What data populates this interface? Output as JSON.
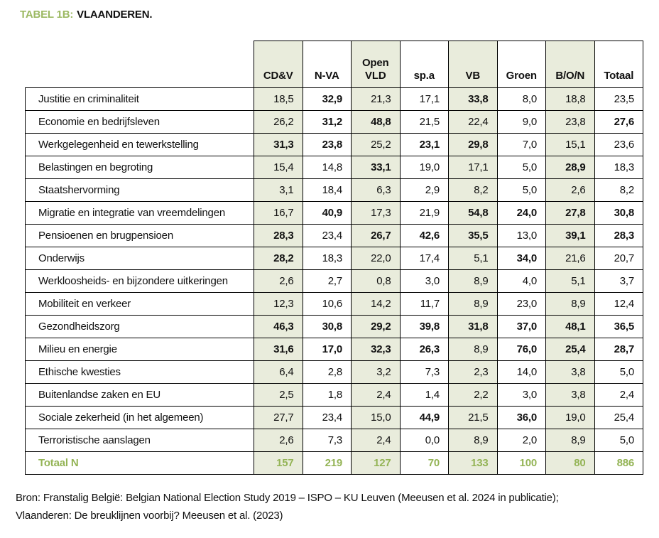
{
  "page": {
    "title_prefix": "TABEL 1B:",
    "title_main": "VLAANDEREN.",
    "source_line1": "Bron: Franstalig België: Belgian National Election Study 2019 – ISPO – KU Leuven (Meeusen et al. 2024 in publicatie);",
    "source_line2": "Vlaanderen: De breuklijnen voorbij? Meeusen et al. (2023)"
  },
  "colors": {
    "accent_green": "#9cb963",
    "total_green": "#94b456",
    "cell_shade": "#e9ecdc",
    "border": "#000000"
  },
  "table": {
    "columns": [
      {
        "label": "CD&V",
        "shaded": true
      },
      {
        "label": "N-VA",
        "shaded": false
      },
      {
        "label": "Open VLD",
        "shaded": true
      },
      {
        "label": "sp.a",
        "shaded": false
      },
      {
        "label": "VB",
        "shaded": true
      },
      {
        "label": "Groen",
        "shaded": false
      },
      {
        "label": "B/O/N",
        "shaded": true
      },
      {
        "label": "Totaal",
        "shaded": false
      }
    ],
    "rows": [
      {
        "label": "Justitie en criminaliteit",
        "values": [
          "18,5",
          "32,9",
          "21,3",
          "17,1",
          "33,8",
          "8,0",
          "18,8",
          "23,5"
        ],
        "bold": [
          0,
          1,
          0,
          0,
          1,
          0,
          0,
          0
        ]
      },
      {
        "label": "Economie en bedrijfsleven",
        "values": [
          "26,2",
          "31,2",
          "48,8",
          "21,5",
          "22,4",
          "9,0",
          "23,8",
          "27,6"
        ],
        "bold": [
          0,
          1,
          1,
          0,
          0,
          0,
          0,
          1
        ]
      },
      {
        "label": "Werkgelegenheid en tewerkstelling",
        "values": [
          "31,3",
          "23,8",
          "25,2",
          "23,1",
          "29,8",
          "7,0",
          "15,1",
          "23,6"
        ],
        "bold": [
          1,
          1,
          0,
          1,
          1,
          0,
          0,
          0
        ]
      },
      {
        "label": "Belastingen en begroting",
        "values": [
          "15,4",
          "14,8",
          "33,1",
          "19,0",
          "17,1",
          "5,0",
          "28,9",
          "18,3"
        ],
        "bold": [
          0,
          0,
          1,
          0,
          0,
          0,
          1,
          0
        ]
      },
      {
        "label": "Staatshervorming",
        "values": [
          "3,1",
          "18,4",
          "6,3",
          "2,9",
          "8,2",
          "5,0",
          "2,6",
          "8,2"
        ],
        "bold": [
          0,
          0,
          0,
          0,
          0,
          0,
          0,
          0
        ]
      },
      {
        "label": "Migratie en integratie van vreemdelingen",
        "values": [
          "16,7",
          "40,9",
          "17,3",
          "21,9",
          "54,8",
          "24,0",
          "27,8",
          "30,8"
        ],
        "bold": [
          0,
          1,
          0,
          0,
          1,
          1,
          1,
          1
        ]
      },
      {
        "label": "Pensioenen en brugpensioen",
        "values": [
          "28,3",
          "23,4",
          "26,7",
          "42,6",
          "35,5",
          "13,0",
          "39,1",
          "28,3"
        ],
        "bold": [
          1,
          0,
          1,
          1,
          1,
          0,
          1,
          1
        ]
      },
      {
        "label": "Onderwijs",
        "values": [
          "28,2",
          "18,3",
          "22,0",
          "17,4",
          "5,1",
          "34,0",
          "21,6",
          "20,7"
        ],
        "bold": [
          1,
          0,
          0,
          0,
          0,
          1,
          0,
          0
        ]
      },
      {
        "label": "Werkloosheids- en bijzondere uitkeringen",
        "values": [
          "2,6",
          "2,7",
          "0,8",
          "3,0",
          "8,9",
          "4,0",
          "5,1",
          "3,7"
        ],
        "bold": [
          0,
          0,
          0,
          0,
          0,
          0,
          0,
          0
        ]
      },
      {
        "label": "Mobiliteit en verkeer",
        "values": [
          "12,3",
          "10,6",
          "14,2",
          "11,7",
          "8,9",
          "23,0",
          "8,9",
          "12,4"
        ],
        "bold": [
          0,
          0,
          0,
          0,
          0,
          0,
          0,
          0
        ]
      },
      {
        "label": "Gezondheidszorg",
        "values": [
          "46,3",
          "30,8",
          "29,2",
          "39,8",
          "31,8",
          "37,0",
          "48,1",
          "36,5"
        ],
        "bold": [
          1,
          1,
          1,
          1,
          1,
          1,
          1,
          1
        ]
      },
      {
        "label": "Milieu en energie",
        "values": [
          "31,6",
          "17,0",
          "32,3",
          "26,3",
          "8,9",
          "76,0",
          "25,4",
          "28,7"
        ],
        "bold": [
          1,
          1,
          1,
          1,
          0,
          1,
          1,
          1
        ]
      },
      {
        "label": "Ethische kwesties",
        "values": [
          "6,4",
          "2,8",
          "3,2",
          "7,3",
          "2,3",
          "14,0",
          "3,8",
          "5,0"
        ],
        "bold": [
          0,
          0,
          0,
          0,
          0,
          0,
          0,
          0
        ]
      },
      {
        "label": "Buitenlandse zaken en EU",
        "values": [
          "2,5",
          "1,8",
          "2,4",
          "1,4",
          "2,2",
          "3,0",
          "3,8",
          "2,4"
        ],
        "bold": [
          0,
          0,
          0,
          0,
          0,
          0,
          0,
          0
        ]
      },
      {
        "label": "Sociale zekerheid (in het algemeen)",
        "values": [
          "27,7",
          "23,4",
          "15,0",
          "44,9",
          "21,5",
          "36,0",
          "19,0",
          "25,4"
        ],
        "bold": [
          0,
          0,
          0,
          1,
          0,
          1,
          0,
          0
        ]
      },
      {
        "label": "Terroristische aanslagen",
        "values": [
          "2,6",
          "7,3",
          "2,4",
          "0,0",
          "8,9",
          "2,0",
          "8,9",
          "5,0"
        ],
        "bold": [
          0,
          0,
          0,
          0,
          0,
          0,
          0,
          0
        ]
      }
    ],
    "total_row": {
      "label": "Totaal N",
      "values": [
        "157",
        "219",
        "127",
        "70",
        "133",
        "100",
        "80",
        "886"
      ]
    }
  }
}
